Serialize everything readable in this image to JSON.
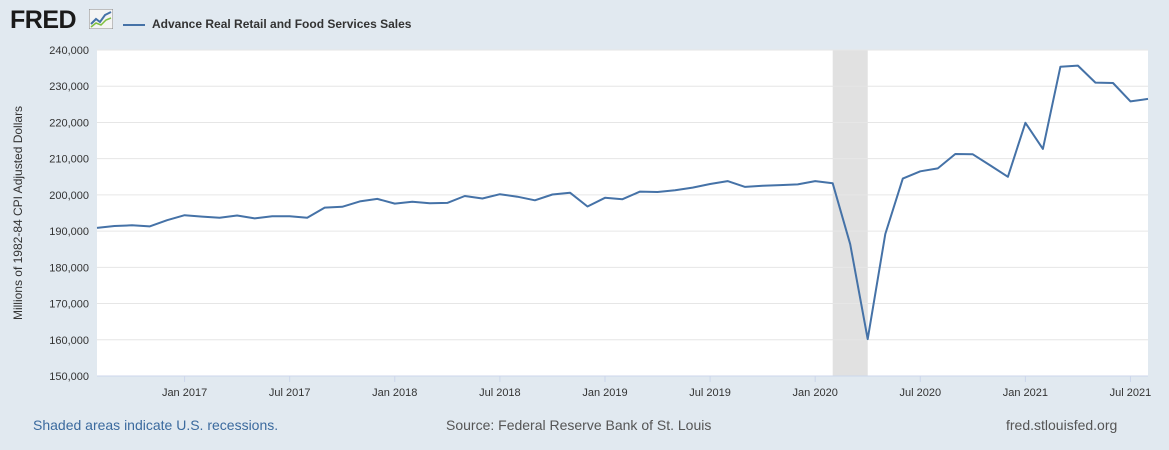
{
  "header": {
    "logo_text": "FRED",
    "series_title": "Advance Real Retail and Food Services Sales"
  },
  "footer": {
    "recession_note": "Shaded areas indicate U.S. recessions.",
    "source": "Source: Federal Reserve Bank of St. Louis",
    "url": "fred.stlouisfed.org"
  },
  "colors": {
    "line": "#4572a7",
    "background": "#e1e9f0",
    "plot_background": "#ffffff",
    "recession_shade": "#e1e1e1",
    "grid": "#e6e6e6"
  },
  "chart_data": {
    "type": "line",
    "title": "",
    "ylabel": "Millions of 1982-84 CPI Adjusted Dollars",
    "xlabel": "",
    "ylim": [
      150000,
      240000
    ],
    "xlim": [
      "2016-08",
      "2021-08"
    ],
    "yticks": [
      150000,
      160000,
      170000,
      180000,
      190000,
      200000,
      210000,
      220000,
      230000,
      240000
    ],
    "ytick_labels": [
      "150,000",
      "160,000",
      "170,000",
      "180,000",
      "190,000",
      "200,000",
      "210,000",
      "220,000",
      "230,000",
      "240,000"
    ],
    "xticks": [
      "2017-01",
      "2017-07",
      "2018-01",
      "2018-07",
      "2019-01",
      "2019-07",
      "2020-01",
      "2020-07",
      "2021-01",
      "2021-07"
    ],
    "xtick_labels": [
      "Jan 2017",
      "Jul 2017",
      "Jan 2018",
      "Jul 2018",
      "Jan 2019",
      "Jul 2019",
      "Jan 2020",
      "Jul 2020",
      "Jan 2021",
      "Jul 2021"
    ],
    "grid": "horizontal",
    "recessions": [
      {
        "start": "2020-02",
        "end": "2020-04"
      }
    ],
    "series": [
      {
        "name": "Advance Real Retail and Food Services Sales",
        "x": [
          "2016-08",
          "2016-09",
          "2016-10",
          "2016-11",
          "2016-12",
          "2017-01",
          "2017-02",
          "2017-03",
          "2017-04",
          "2017-05",
          "2017-06",
          "2017-07",
          "2017-08",
          "2017-09",
          "2017-10",
          "2017-11",
          "2017-12",
          "2018-01",
          "2018-02",
          "2018-03",
          "2018-04",
          "2018-05",
          "2018-06",
          "2018-07",
          "2018-08",
          "2018-09",
          "2018-10",
          "2018-11",
          "2018-12",
          "2019-01",
          "2019-02",
          "2019-03",
          "2019-04",
          "2019-05",
          "2019-06",
          "2019-07",
          "2019-08",
          "2019-09",
          "2019-10",
          "2019-11",
          "2019-12",
          "2020-01",
          "2020-02",
          "2020-03",
          "2020-04",
          "2020-05",
          "2020-06",
          "2020-07",
          "2020-08",
          "2020-09",
          "2020-10",
          "2020-11",
          "2020-12",
          "2021-01",
          "2021-02",
          "2021-03",
          "2021-04",
          "2021-05",
          "2021-06",
          "2021-07",
          "2021-08"
        ],
        "values": [
          190900,
          191400,
          191600,
          191300,
          193000,
          194400,
          194000,
          193700,
          194300,
          193500,
          194100,
          194100,
          193700,
          196500,
          196700,
          198200,
          198900,
          197600,
          198100,
          197700,
          197800,
          199700,
          199000,
          200200,
          199500,
          198500,
          200100,
          200600,
          196800,
          199200,
          198800,
          200900,
          200800,
          201300,
          202000,
          203000,
          203800,
          202200,
          202500,
          202700,
          202900,
          203800,
          203200,
          186400,
          160200,
          189200,
          204500,
          206500,
          207300,
          211300,
          211200,
          208100,
          205000,
          219900,
          212700,
          235400,
          235700,
          231000,
          230900,
          225800,
          226500
        ]
      }
    ]
  }
}
